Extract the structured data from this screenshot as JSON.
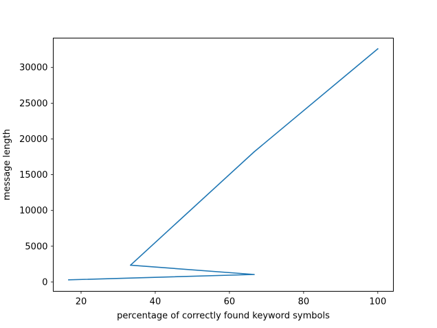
{
  "chart_data": {
    "type": "line",
    "title": "",
    "xlabel": "percentage of correctly found keyword symbols",
    "ylabel": "message length",
    "xlim": [
      12.5,
      104.2
    ],
    "ylim": [
      -1300,
      34100
    ],
    "xticks": [
      20,
      40,
      60,
      80,
      100
    ],
    "yticks": [
      0,
      5000,
      10000,
      15000,
      20000,
      25000,
      30000
    ],
    "grid": false,
    "series": [
      {
        "color": "#1f77b4",
        "x": [
          16.67,
          66.67,
          33.33,
          66.67,
          100
        ],
        "y": [
          300,
          1050,
          2350,
          18200,
          32600
        ]
      }
    ]
  }
}
